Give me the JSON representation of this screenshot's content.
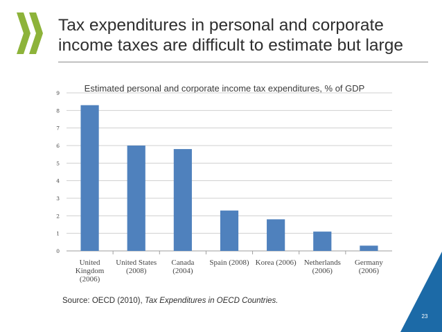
{
  "slide": {
    "title": "Tax expenditures in personal and corporate income taxes are difficult to estimate but large",
    "source_prefix": "Source: OECD (2010), ",
    "source_italic": "Tax Expenditures in OECD Countries.",
    "page_number": "23",
    "logo_color": "#8db33a",
    "corner_color": "#1c6aa7"
  },
  "chart_data": {
    "type": "bar",
    "title": "Estimated personal and corporate income tax expenditures, % of GDP",
    "categories": [
      [
        "United",
        "Kingdom",
        "(2006)"
      ],
      [
        "United States",
        "(2008)"
      ],
      [
        "Canada",
        "(2004)"
      ],
      [
        "Spain (2008)"
      ],
      [
        "Korea (2006)"
      ],
      [
        "Netherlands",
        "(2006)"
      ],
      [
        "Germany",
        "(2006)"
      ]
    ],
    "values": [
      8.3,
      6.0,
      5.8,
      2.3,
      1.8,
      1.1,
      0.3
    ],
    "ylim": [
      0,
      9
    ],
    "yticks": [
      "0",
      "1",
      "2",
      "3",
      "4",
      "5",
      "6",
      "7",
      "8",
      "9"
    ],
    "xlabel": "",
    "ylabel": "",
    "grid": true,
    "bar_color": "#4f81bd"
  }
}
